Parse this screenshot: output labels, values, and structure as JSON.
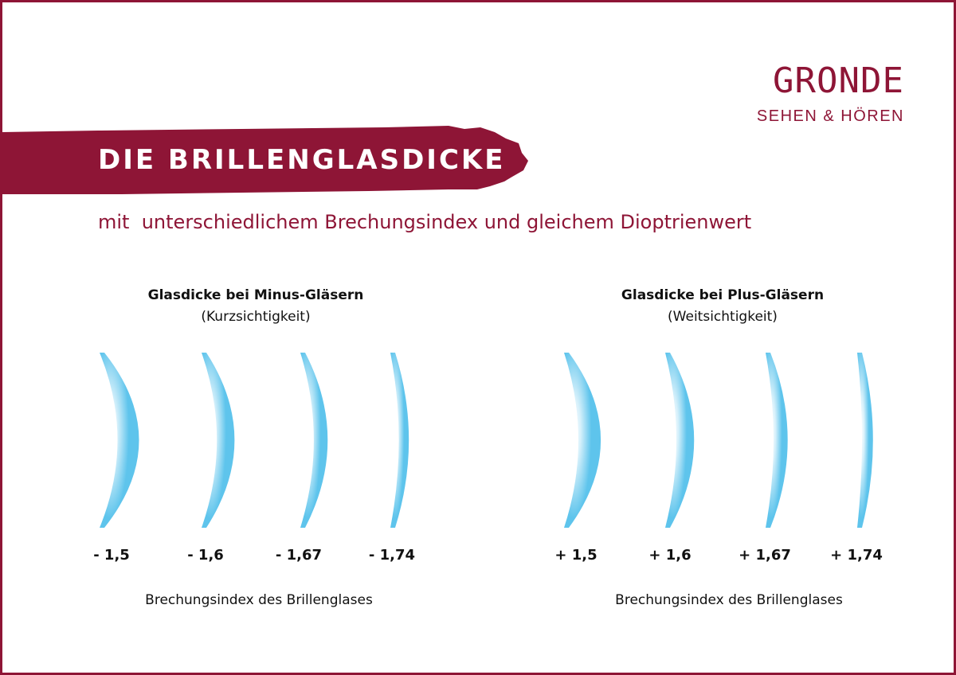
{
  "logo": {
    "name": "GRONDE",
    "tagline": "SEHEN & HÖREN"
  },
  "title": "DIE BRILLENGLASDICKE",
  "subtitle": "mit  unterschiedlichem Brechungsindex und gleichem Dioptrienwert",
  "colors": {
    "brand": "#8e1536",
    "lens": "#5ec4ec",
    "text": "#111111"
  },
  "groups": [
    {
      "id": "minus",
      "heading_bold": "Glasdicke bei Minus-Gläsern",
      "heading_sub": "(Kurzsichtigkeit)",
      "caption": "Brechungsindex des Brillenglases",
      "lenses": [
        {
          "label": "- 1,5",
          "index": 1.5
        },
        {
          "label": "- 1,6",
          "index": 1.6
        },
        {
          "label": "- 1,67",
          "index": 1.67
        },
        {
          "label": "- 1,74",
          "index": 1.74
        }
      ]
    },
    {
      "id": "plus",
      "heading_bold": "Glasdicke bei Plus-Gläsern",
      "heading_sub": "(Weitsichtigkeit)",
      "caption": "Brechungsindex des Brillenglases",
      "lenses": [
        {
          "label": "+ 1,5",
          "index": 1.5
        },
        {
          "label": "+ 1,6",
          "index": 1.6
        },
        {
          "label": "+ 1,67",
          "index": 1.67
        },
        {
          "label": "+ 1,74",
          "index": 1.74
        }
      ]
    }
  ]
}
